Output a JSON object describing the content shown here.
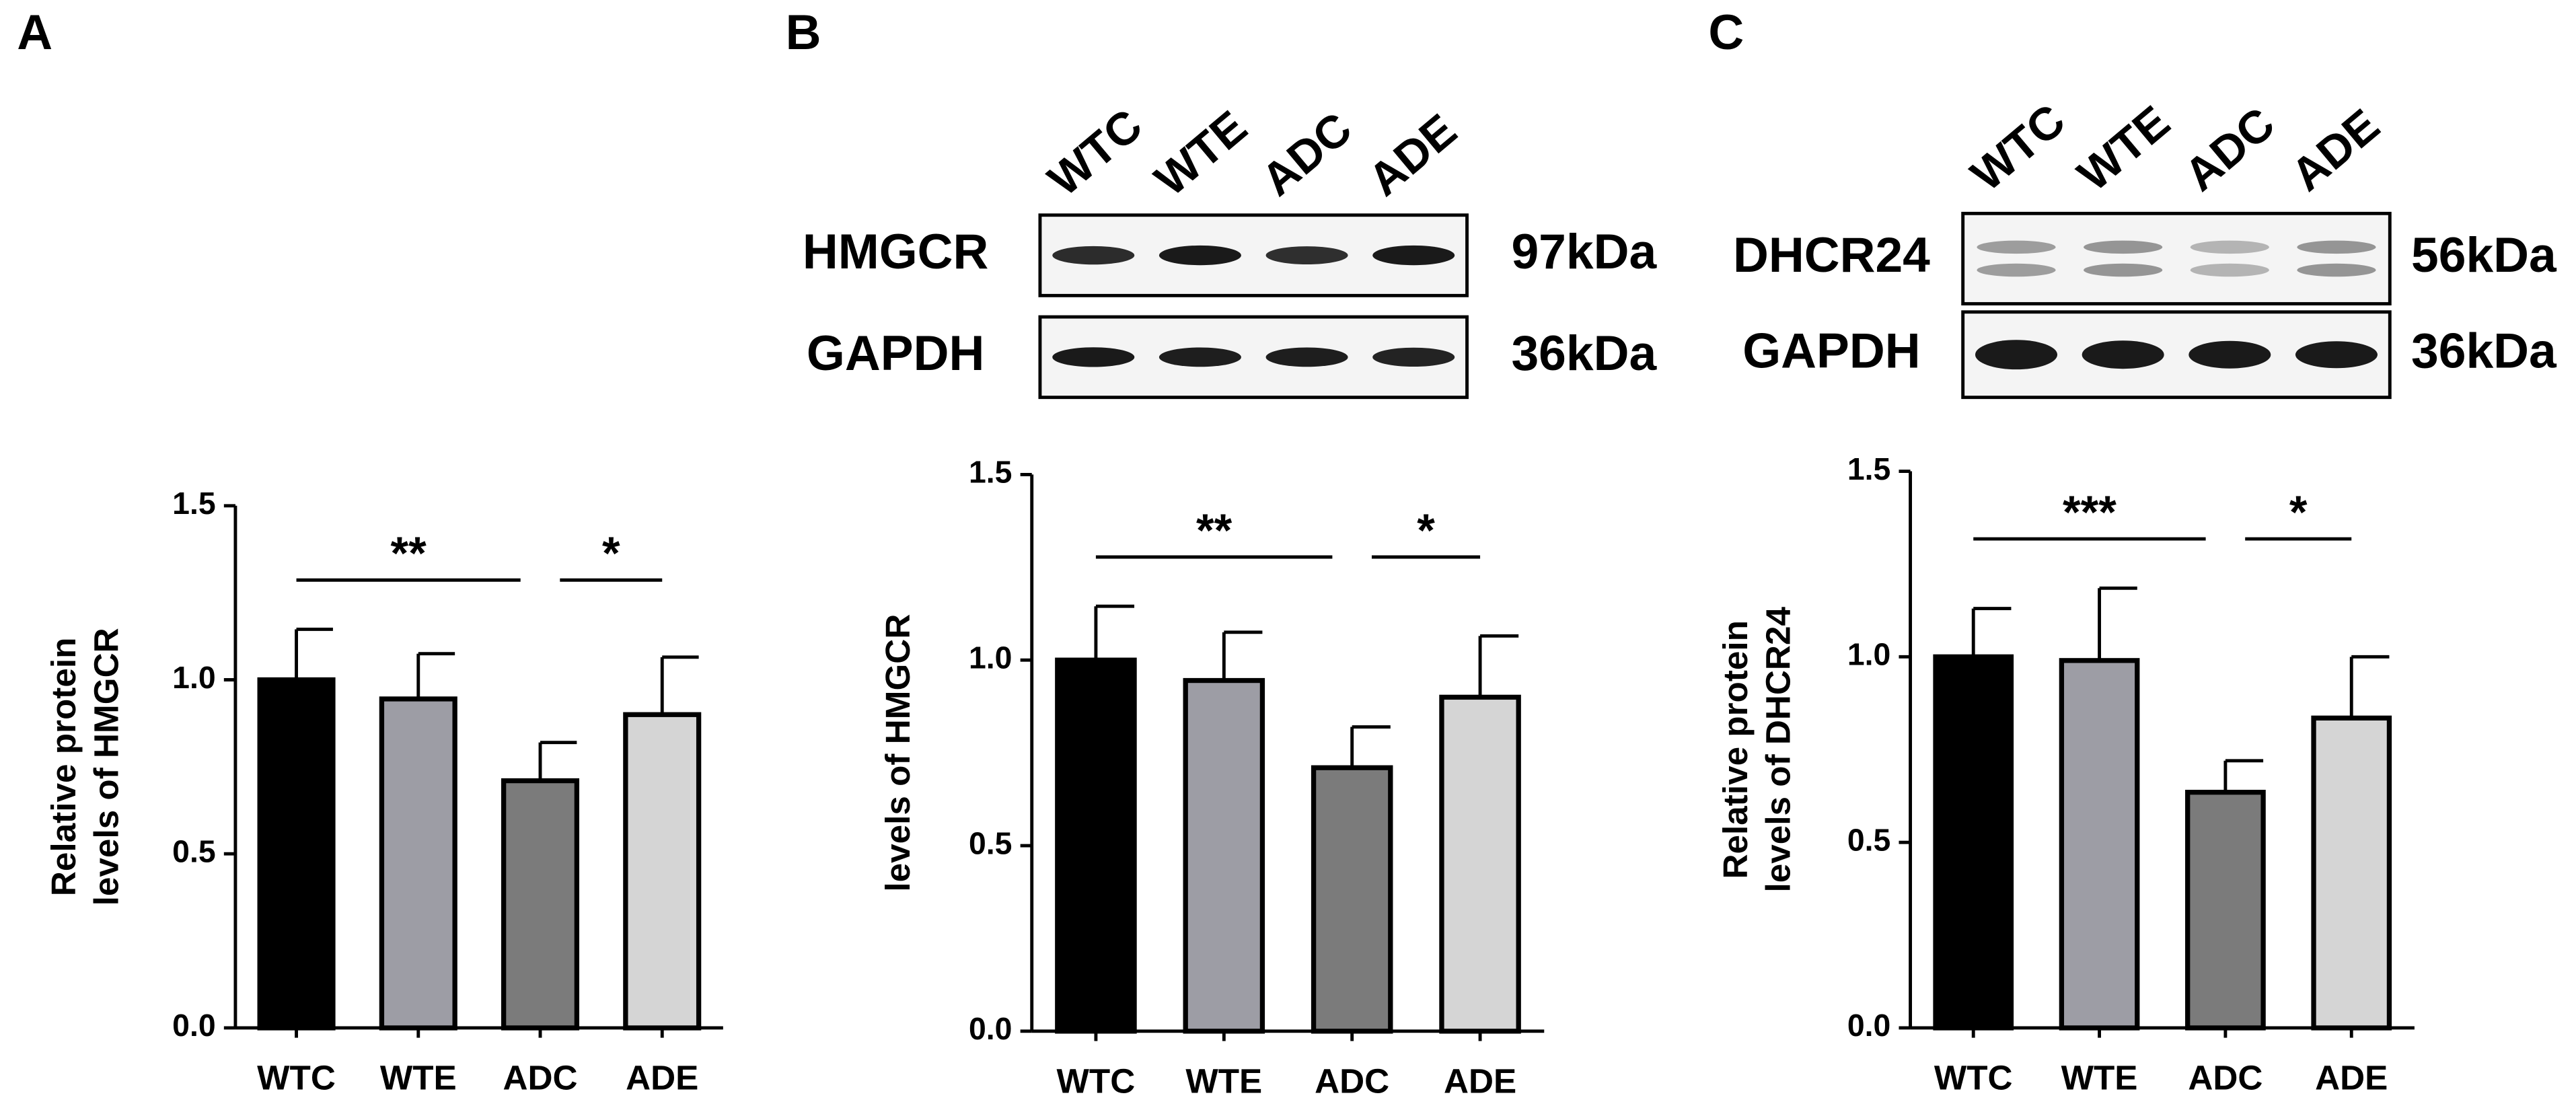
{
  "panel_labels": [
    "A",
    "B",
    "C"
  ],
  "blots": [
    {
      "lanes": [
        "WTC",
        "WTE",
        "ADC",
        "ADE"
      ],
      "rows": [
        {
          "protein": "HMGCR",
          "size": "97kDa"
        },
        {
          "protein": "GAPDH",
          "size": "36kDa"
        }
      ]
    },
    {
      "lanes": [
        "WTC",
        "WTE",
        "ADC",
        "ADE"
      ],
      "rows": [
        {
          "protein": "DHCR24",
          "size": "56kDa"
        },
        {
          "protein": "GAPDH",
          "size": "36kDa"
        }
      ]
    }
  ],
  "chart_data": [
    {
      "type": "bar",
      "ylabel": [
        "Relative protein",
        "levels of HMGCR"
      ],
      "categories": [
        "WTC",
        "WTE",
        "ADC",
        "ADE"
      ],
      "values": [
        1.0,
        0.945,
        0.71,
        0.9
      ],
      "errors": [
        0.145,
        0.13,
        0.11,
        0.165
      ],
      "colors": [
        "#000000",
        "#9d9da5",
        "#7b7b7b",
        "#d5d5d5"
      ],
      "ylim": [
        0,
        1.5
      ],
      "yticks": [
        {
          "value": 0,
          "label": "0.0"
        },
        0.5,
        {
          "value": 1,
          "label": "1.0"
        },
        1.5
      ],
      "significance": [
        {
          "categories": [
            "WTC",
            "ADC"
          ],
          "label": "**"
        },
        {
          "categories": [
            "ADC",
            "ADE"
          ],
          "label": "*"
        }
      ]
    },
    {
      "type": "bar",
      "ylabel": [
        "levels of HMGCR"
      ],
      "categories": [
        "WTC",
        "WTE",
        "ADC",
        "ADE"
      ],
      "values": [
        1.0,
        0.945,
        0.71,
        0.9
      ],
      "errors": [
        0.145,
        0.13,
        0.11,
        0.165
      ],
      "colors": [
        "#000000",
        "#9d9da5",
        "#7b7b7b",
        "#d5d5d5"
      ],
      "ylim": [
        0,
        1.5
      ],
      "yticks": [
        {
          "value": 0,
          "label": "0.0"
        },
        0.5,
        {
          "value": 1,
          "label": "1.0"
        },
        1.5
      ],
      "significance": [
        {
          "categories": [
            "WTC",
            "ADC"
          ],
          "label": "**"
        },
        {
          "categories": [
            "ADC",
            "ADE"
          ],
          "label": "*"
        }
      ]
    },
    {
      "type": "bar",
      "ylabel": [
        "Relative protein",
        "levels of DHCR24"
      ],
      "categories": [
        "WTC",
        "WTE",
        "ADC",
        "ADE"
      ],
      "values": [
        1.0,
        0.99,
        0.635,
        0.835
      ],
      "errors": [
        0.13,
        0.195,
        0.085,
        0.165
      ],
      "colors": [
        "#000000",
        "#9d9da5",
        "#7b7b7b",
        "#d5d5d5"
      ],
      "ylim": [
        0,
        1.5
      ],
      "yticks": [
        {
          "value": 0,
          "label": "0.0"
        },
        0.5,
        {
          "value": 1,
          "label": "1.0"
        },
        1.5
      ],
      "significance": [
        {
          "categories": [
            "WTC",
            "ADC"
          ],
          "label": "***"
        },
        {
          "categories": [
            "ADC",
            "ADE"
          ],
          "label": "*"
        }
      ]
    }
  ]
}
